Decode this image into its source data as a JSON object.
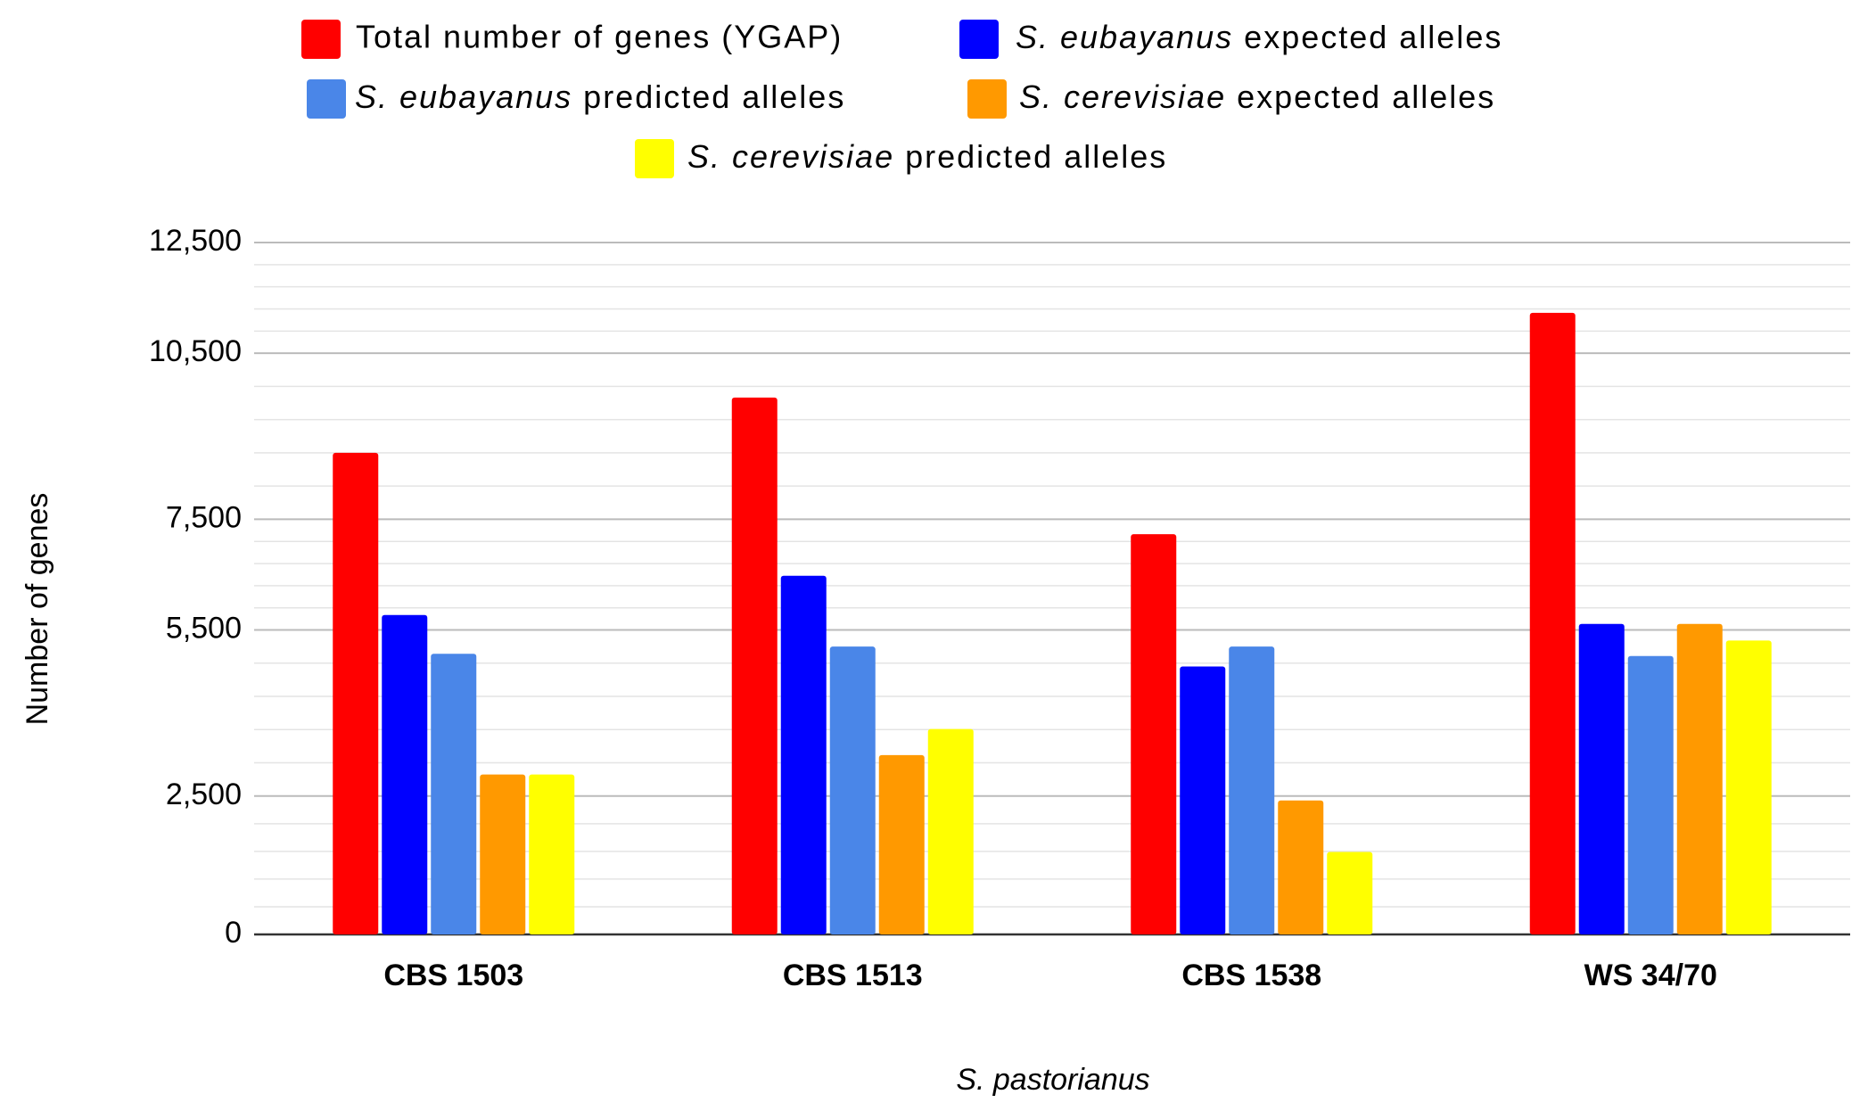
{
  "chart_data": {
    "type": "bar",
    "x_label": "S. pastorianus",
    "y_label": "Number of genes",
    "categories": [
      "CBS 1503",
      "CBS 1513",
      "CBS 1538",
      "WS 34/70"
    ],
    "series": [
      {
        "name": "Total number of genes (YGAP)",
        "color": "#ff0000",
        "values": [
          8700,
          9700,
          7230,
          11230
        ]
      },
      {
        "name": "S. eubayanus expected alleles",
        "color": "#0000ff",
        "values": [
          5770,
          6480,
          4840,
          5610
        ]
      },
      {
        "name": "S. eubayanus predicted alleles",
        "color": "#4a86e8",
        "values": [
          5070,
          5200,
          5200,
          5030
        ]
      },
      {
        "name": "S. cerevisiae expected alleles",
        "color": "#ff9900",
        "values": [
          2890,
          3240,
          2420,
          5610
        ]
      },
      {
        "name": "S. cerevisiae predicted alleles",
        "color": "#ffff00",
        "values": [
          2890,
          3710,
          1490,
          5310
        ]
      }
    ],
    "ylim": [
      0,
      12500
    ],
    "yticks": [
      0,
      {
        "value": 2500,
        "label": "2,500"
      },
      {
        "value": 5500,
        "label": "5,500"
      },
      {
        "value": 7500,
        "label": "7,500"
      },
      {
        "value": 10500,
        "label": "10,500"
      },
      {
        "value": 12500,
        "label": "12,500"
      }
    ],
    "grid": true,
    "legend": "top"
  }
}
